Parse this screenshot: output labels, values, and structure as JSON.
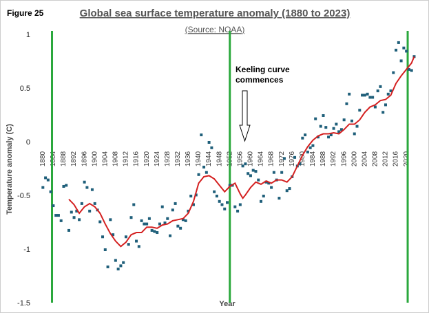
{
  "chart_data": {
    "type": "scatter",
    "figure_label": "Figure 25",
    "title": "Global sea surface temperature anomaly (1880 to 2023)",
    "subtitle": "(Source: NOAA)",
    "x_label": "Year",
    "y_label": "Temperature anomaly (C)",
    "annotation": [
      "Keeling curve",
      "commences"
    ],
    "xlim": [
      1877,
      2025
    ],
    "ylim": [
      -1.5,
      1
    ],
    "yticks": [
      -1.5,
      -1,
      -0.5,
      0,
      0.5,
      1
    ],
    "xticks": [
      1880,
      1884,
      1888,
      1892,
      1896,
      1900,
      1904,
      1908,
      1912,
      1916,
      1920,
      1924,
      1928,
      1932,
      1936,
      1940,
      1944,
      1948,
      1952,
      1956,
      1960,
      1964,
      1968,
      1972,
      1976,
      1980,
      1984,
      1988,
      1992,
      1996,
      2000,
      2004,
      2008,
      2012,
      2016,
      2020
    ],
    "points": {
      "color": "#1f5f7a",
      "x": [
        1880,
        1881,
        1882,
        1883,
        1884,
        1885,
        1886,
        1887,
        1888,
        1889,
        1890,
        1891,
        1892,
        1893,
        1894,
        1895,
        1896,
        1897,
        1898,
        1899,
        1900,
        1901,
        1902,
        1903,
        1904,
        1905,
        1906,
        1907,
        1908,
        1909,
        1910,
        1911,
        1912,
        1913,
        1914,
        1915,
        1916,
        1917,
        1918,
        1919,
        1920,
        1921,
        1922,
        1923,
        1924,
        1925,
        1926,
        1927,
        1928,
        1929,
        1930,
        1931,
        1932,
        1933,
        1934,
        1935,
        1936,
        1937,
        1938,
        1939,
        1940,
        1941,
        1942,
        1943,
        1944,
        1945,
        1946,
        1947,
        1948,
        1949,
        1950,
        1951,
        1952,
        1953,
        1954,
        1955,
        1956,
        1957,
        1958,
        1959,
        1960,
        1961,
        1962,
        1963,
        1964,
        1965,
        1966,
        1967,
        1968,
        1969,
        1970,
        1971,
        1972,
        1973,
        1974,
        1975,
        1976,
        1977,
        1978,
        1979,
        1980,
        1981,
        1982,
        1983,
        1984,
        1985,
        1986,
        1987,
        1988,
        1989,
        1990,
        1991,
        1992,
        1993,
        1994,
        1995,
        1996,
        1997,
        1998,
        1999,
        2000,
        2001,
        2002,
        2003,
        2004,
        2005,
        2006,
        2007,
        2008,
        2009,
        2010,
        2011,
        2012,
        2013,
        2014,
        2015,
        2016,
        2017,
        2018,
        2019,
        2020,
        2021,
        2022,
        2023
      ],
      "values": [
        -0.42,
        -0.33,
        -0.35,
        -0.46,
        -0.59,
        -0.68,
        -0.68,
        -0.73,
        -0.41,
        -0.4,
        -0.82,
        -0.65,
        -0.7,
        -0.64,
        -0.72,
        -0.57,
        -0.37,
        -0.42,
        -0.64,
        -0.44,
        -0.57,
        -0.63,
        -0.74,
        -0.88,
        -1,
        -1.16,
        -0.72,
        -0.86,
        -1.1,
        -1.18,
        -1.15,
        -1.12,
        -0.88,
        -0.95,
        -0.7,
        -0.58,
        -0.92,
        -0.97,
        -0.73,
        -0.76,
        -0.76,
        -0.71,
        -0.82,
        -0.83,
        -0.84,
        -0.76,
        -0.6,
        -0.75,
        -0.71,
        -0.87,
        -0.63,
        -0.57,
        -0.78,
        -0.8,
        -0.72,
        -0.73,
        -0.64,
        -0.5,
        -0.58,
        -0.49,
        -0.3,
        0.07,
        -0.23,
        -0.28,
        0,
        -0.05,
        -0.46,
        -0.5,
        -0.55,
        -0.58,
        -0.62,
        -0.56,
        -0.4,
        -0.4,
        -0.6,
        -0.64,
        -0.58,
        -0.22,
        -0.2,
        -0.29,
        -0.31,
        -0.26,
        -0.27,
        -0.35,
        -0.55,
        -0.5,
        -0.37,
        -0.38,
        -0.42,
        -0.28,
        -0.35,
        -0.52,
        -0.28,
        -0.15,
        -0.45,
        -0.43,
        -0.32,
        -0.14,
        -0.22,
        -0.2,
        0.04,
        0.07,
        -0.09,
        -0.05,
        -0.03,
        0.22,
        0.05,
        0.15,
        0.25,
        0.14,
        0.05,
        0.07,
        0.13,
        0.17,
        0.1,
        0.12,
        0.21,
        0.36,
        0.45,
        0.2,
        0.08,
        0.15,
        0.3,
        0.44,
        0.44,
        0.45,
        0.42,
        0.42,
        0.33,
        0.48,
        0.52,
        0.28,
        0.35,
        0.45,
        0.48,
        0.65,
        0.86,
        0.93,
        0.76,
        0.88,
        0.85,
        0.68,
        0.67,
        0.8
      ]
    },
    "trend": {
      "color": "#d42020",
      "x": [
        1890,
        1892,
        1894,
        1896,
        1898,
        1900,
        1902,
        1904,
        1906,
        1908,
        1910,
        1912,
        1914,
        1916,
        1918,
        1920,
        1922,
        1924,
        1926,
        1928,
        1930,
        1932,
        1934,
        1936,
        1938,
        1940,
        1942,
        1944,
        1946,
        1948,
        1950,
        1952,
        1954,
        1956,
        1957,
        1958,
        1960,
        1962,
        1964,
        1966,
        1968,
        1970,
        1972,
        1974,
        1976,
        1978,
        1980,
        1982,
        1984,
        1986,
        1988,
        1990,
        1992,
        1994,
        1996,
        1998,
        2000,
        2002,
        2004,
        2006,
        2008,
        2010,
        2012,
        2014,
        2016,
        2018,
        2020,
        2022,
        2023
      ],
      "values": [
        -0.53,
        -0.58,
        -0.66,
        -0.6,
        -0.57,
        -0.6,
        -0.66,
        -0.76,
        -0.85,
        -0.92,
        -0.97,
        -0.93,
        -0.86,
        -0.84,
        -0.84,
        -0.79,
        -0.79,
        -0.8,
        -0.77,
        -0.76,
        -0.73,
        -0.72,
        -0.71,
        -0.66,
        -0.55,
        -0.38,
        -0.32,
        -0.31,
        -0.34,
        -0.4,
        -0.46,
        -0.41,
        -0.38,
        -0.48,
        -0.52,
        -0.49,
        -0.42,
        -0.37,
        -0.39,
        -0.36,
        -0.38,
        -0.35,
        -0.35,
        -0.37,
        -0.32,
        -0.22,
        -0.12,
        -0.04,
        0.02,
        0.06,
        0.08,
        0.08,
        0.09,
        0.08,
        0.12,
        0.17,
        0.17,
        0.21,
        0.28,
        0.33,
        0.35,
        0.39,
        0.4,
        0.44,
        0.55,
        0.62,
        0.68,
        0.74,
        0.8
      ]
    },
    "vertical_lines": {
      "color": "#2aa83c",
      "x": [
        1883.5,
        1952,
        2020.5
      ]
    }
  }
}
